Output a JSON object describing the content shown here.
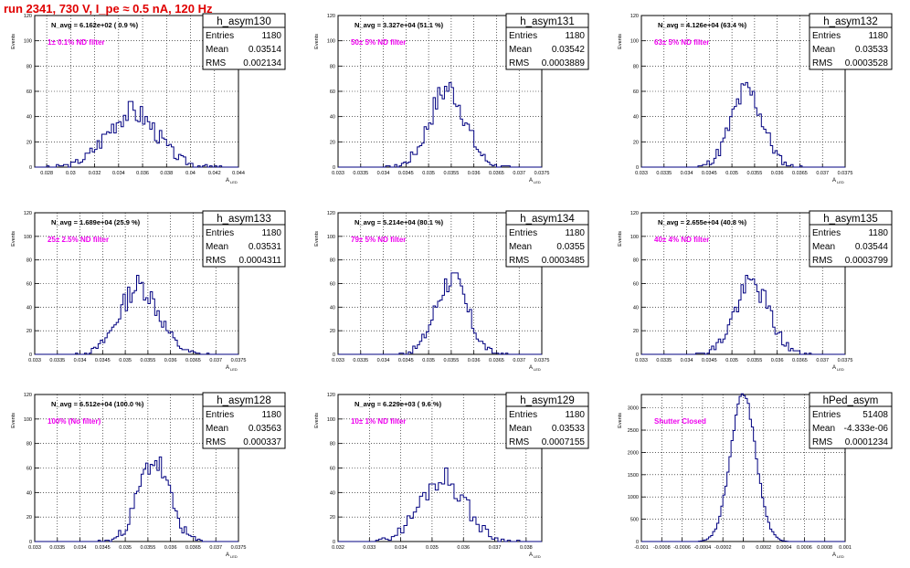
{
  "title": "run 2341,   730 V, I_pe ≈ 0.5 nA, 120 Hz",
  "colors": {
    "title": "#e00000",
    "hist": "#000080",
    "filter": "#ee00ee",
    "grid": "#000000"
  },
  "chart_data": [
    {
      "type": "histogram",
      "name": "h_asym130",
      "entries": "1180",
      "mean": "0.03514",
      "rms": "0.002134",
      "navg": "N_avg = 6.162e+02 ( 0.9 %)",
      "filter": "1± 0.1% ND filter",
      "ylabel": "Events",
      "xlabel": "A_LED",
      "xlim": [
        0.027,
        0.044
      ],
      "ylim": [
        0,
        120
      ],
      "xticks": [
        "0.028",
        "0.03",
        "0.032",
        "0.034",
        "0.036",
        "0.038",
        "0.04",
        "0.042",
        "0.044"
      ],
      "xtick_vals": [
        0.028,
        0.03,
        0.032,
        0.034,
        0.036,
        0.038,
        0.04,
        0.042,
        0.044
      ],
      "yticks": [
        0,
        20,
        40,
        60,
        80,
        100,
        120
      ],
      "center": 0.0351,
      "sigma": 0.0021,
      "peak": 44,
      "bin": 0.0002,
      "seed": 3
    },
    {
      "type": "histogram",
      "name": "h_asym131",
      "entries": "1180",
      "mean": "0.03542",
      "rms": "0.0003889",
      "navg": "N_avg = 3.327e+04 (51.1 %)",
      "filter": "50± 5% ND filter",
      "ylabel": "Events",
      "xlabel": "A_LED",
      "xlim": [
        0.033,
        0.0375
      ],
      "ylim": [
        0,
        120
      ],
      "xticks": [
        "0.033",
        "0.0335",
        "0.034",
        "0.0345",
        "0.035",
        "0.0355",
        "0.036",
        "0.0365",
        "0.037",
        "0.0375"
      ],
      "xtick_vals": [
        0.033,
        0.0335,
        0.034,
        0.0345,
        0.035,
        0.0355,
        0.036,
        0.0365,
        0.037,
        0.0375
      ],
      "yticks": [
        0,
        20,
        40,
        60,
        80,
        100,
        120
      ],
      "center": 0.03542,
      "sigma": 0.00039,
      "peak": 62,
      "bin": 5e-05,
      "seed": 7
    },
    {
      "type": "histogram",
      "name": "h_asym132",
      "entries": "1180",
      "mean": "0.03533",
      "rms": "0.0003528",
      "navg": "N_avg = 4.126e+04 (63.4 %)",
      "filter": "63± 5% ND filter",
      "ylabel": "Events",
      "xlabel": "A_LED",
      "xlim": [
        0.033,
        0.0375
      ],
      "ylim": [
        0,
        120
      ],
      "xticks": [
        "0.033",
        "0.0335",
        "0.034",
        "0.0345",
        "0.035",
        "0.0355",
        "0.036",
        "0.0365",
        "0.037",
        "0.0375"
      ],
      "xtick_vals": [
        0.033,
        0.0335,
        0.034,
        0.0345,
        0.035,
        0.0355,
        0.036,
        0.0365,
        0.037,
        0.0375
      ],
      "yticks": [
        0,
        20,
        40,
        60,
        80,
        100,
        120
      ],
      "center": 0.03533,
      "sigma": 0.00035,
      "peak": 60,
      "bin": 5e-05,
      "seed": 11
    },
    {
      "type": "histogram",
      "name": "h_asym133",
      "entries": "1180",
      "mean": "0.03531",
      "rms": "0.0004311",
      "navg": "N_avg = 1.689e+04 (25.9 %)",
      "filter": "25± 2.5% ND filter",
      "ylabel": "Events",
      "xlabel": "A_LED",
      "xlim": [
        0.033,
        0.0375
      ],
      "ylim": [
        0,
        120
      ],
      "xticks": [
        "0.033",
        "0.0335",
        "0.034",
        "0.0345",
        "0.035",
        "0.0355",
        "0.036",
        "0.0365",
        "0.037",
        "0.0375"
      ],
      "xtick_vals": [
        0.033,
        0.0335,
        0.034,
        0.0345,
        0.035,
        0.0355,
        0.036,
        0.0365,
        0.037,
        0.0375
      ],
      "yticks": [
        0,
        20,
        40,
        60,
        80,
        100,
        120
      ],
      "center": 0.03531,
      "sigma": 0.00043,
      "peak": 58,
      "bin": 5e-05,
      "seed": 13
    },
    {
      "type": "histogram",
      "name": "h_asym134",
      "entries": "1180",
      "mean": "0.0355",
      "rms": "0.0003485",
      "navg": "N_avg = 5.214e+04 (80.1 %)",
      "filter": "79± 5% ND filter",
      "ylabel": "Events",
      "xlabel": "A_LED",
      "xlim": [
        0.033,
        0.0375
      ],
      "ylim": [
        0,
        120
      ],
      "xticks": [
        "0.033",
        "0.0335",
        "0.034",
        "0.0345",
        "0.035",
        "0.0355",
        "0.036",
        "0.0365",
        "0.037",
        "0.0375"
      ],
      "xtick_vals": [
        0.033,
        0.0335,
        0.034,
        0.0345,
        0.035,
        0.0355,
        0.036,
        0.0365,
        0.037,
        0.0375
      ],
      "yticks": [
        0,
        20,
        40,
        60,
        80,
        100,
        120
      ],
      "center": 0.0355,
      "sigma": 0.00035,
      "peak": 64,
      "bin": 5e-05,
      "seed": 17
    },
    {
      "type": "histogram",
      "name": "h_asym135",
      "entries": "1180",
      "mean": "0.03544",
      "rms": "0.0003799",
      "navg": "N_avg = 2.655e+04 (40.8 %)",
      "filter": "40± 4% ND filter",
      "ylabel": "Events",
      "xlabel": "A_LED",
      "xlim": [
        0.033,
        0.0375
      ],
      "ylim": [
        0,
        120
      ],
      "xticks": [
        "0.033",
        "0.0335",
        "0.034",
        "0.0345",
        "0.035",
        "0.0355",
        "0.036",
        "0.0365",
        "0.037",
        "0.0375"
      ],
      "xtick_vals": [
        0.033,
        0.0335,
        0.034,
        0.0345,
        0.035,
        0.0355,
        0.036,
        0.0365,
        0.037,
        0.0375
      ],
      "yticks": [
        0,
        20,
        40,
        60,
        80,
        100,
        120
      ],
      "center": 0.03544,
      "sigma": 0.00038,
      "peak": 60,
      "bin": 5e-05,
      "seed": 19
    },
    {
      "type": "histogram",
      "name": "h_asym128",
      "entries": "1180",
      "mean": "0.03563",
      "rms": "0.000337",
      "navg": "N_avg = 6.512e+04 (100.0 %)",
      "filter": "100% (No filter)",
      "ylabel": "Events",
      "xlabel": "A_LED",
      "xlim": [
        0.033,
        0.0375
      ],
      "ylim": [
        0,
        120
      ],
      "xticks": [
        "0.033",
        "0.0335",
        "0.034",
        "0.0345",
        "0.035",
        "0.0355",
        "0.036",
        "0.0365",
        "0.037",
        "0.0375"
      ],
      "xtick_vals": [
        0.033,
        0.0335,
        0.034,
        0.0345,
        0.035,
        0.0355,
        0.036,
        0.0365,
        0.037,
        0.0375
      ],
      "yticks": [
        0,
        20,
        40,
        60,
        80,
        100,
        120
      ],
      "center": 0.03563,
      "sigma": 0.00034,
      "peak": 66,
      "bin": 5e-05,
      "seed": 23
    },
    {
      "type": "histogram",
      "name": "h_asym129",
      "entries": "1180",
      "mean": "0.03533",
      "rms": "0.0007155",
      "navg": "N_avg = 6.229e+03 ( 9.6 %)",
      "filter": "10± 1% ND filter",
      "ylabel": "Events",
      "xlabel": "A_LED",
      "xlim": [
        0.032,
        0.0385
      ],
      "ylim": [
        0,
        120
      ],
      "xticks": [
        "0.032",
        "0.033",
        "0.034",
        "0.035",
        "0.036",
        "0.037",
        "0.038"
      ],
      "xtick_vals": [
        0.032,
        0.033,
        0.034,
        0.035,
        0.036,
        0.037,
        0.038
      ],
      "yticks": [
        0,
        20,
        40,
        60,
        80,
        100,
        120
      ],
      "center": 0.03533,
      "sigma": 0.00072,
      "peak": 52,
      "bin": 0.0001,
      "seed": 29
    },
    {
      "type": "histogram",
      "name": "hPed_asym",
      "entries": "51408",
      "mean": "-4.333e-06",
      "rms": "0.0001234",
      "navg": "",
      "filter": "Shutter Closed",
      "ylabel": "Events",
      "xlabel": "A_LED",
      "xlim": [
        -0.001,
        0.001
      ],
      "ylim": [
        0,
        3300
      ],
      "xticks": [
        "-0.001",
        "-0.0008",
        "-0.0006",
        "-0.0004",
        "-0.0002",
        "0",
        "0.0002",
        "0.0004",
        "0.0006",
        "0.0008",
        "0.001"
      ],
      "xtick_vals": [
        -0.001,
        -0.0008,
        -0.0006,
        -0.0004,
        -0.0002,
        0,
        0.0002,
        0.0004,
        0.0006,
        0.0008,
        0.001
      ],
      "yticks": [
        0,
        500,
        1000,
        1500,
        2000,
        2500,
        3000
      ],
      "center": 0.0,
      "sigma": 0.000123,
      "peak": 3300,
      "bin": 2e-05,
      "seed": 31
    }
  ]
}
